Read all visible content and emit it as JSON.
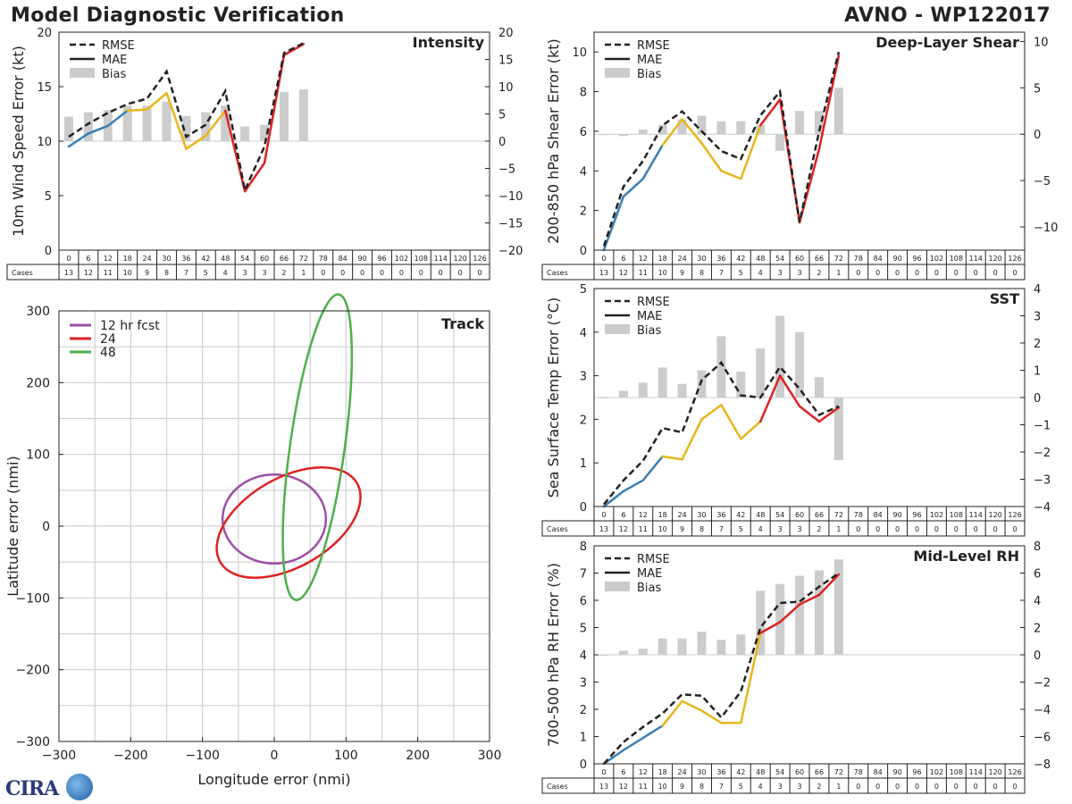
{
  "header": {
    "title": "Model Diagnostic Verification",
    "storm": "AVNO - WP122017"
  },
  "logo": {
    "text": "CIRA"
  },
  "lead_times": [
    0,
    6,
    12,
    18,
    24,
    30,
    36,
    42,
    48,
    54,
    60,
    66,
    72,
    78,
    84,
    90,
    96,
    102,
    108,
    114,
    120,
    126
  ],
  "cases_label": "Cases",
  "cases": [
    13,
    12,
    11,
    10,
    9,
    8,
    7,
    5,
    4,
    3,
    3,
    2,
    1,
    0,
    0,
    0,
    0,
    0,
    0,
    0,
    0,
    0
  ],
  "colors": {
    "rmse": "#222222",
    "mae_blue": "#3a7fb5",
    "mae_yellow": "#e8b51c",
    "mae_red": "#dd2222",
    "bias": "#cccccc",
    "purple": "#9b4fa5",
    "red": "#dd2222",
    "green": "#4daf4a"
  },
  "legend": {
    "rmse": "RMSE",
    "mae": "MAE",
    "bias": "Bias"
  },
  "chart_data": [
    {
      "type": "line",
      "name": "intensity",
      "title": "Intensity",
      "ylabel": "10m Wind Speed Error (kt)",
      "ylim": [
        0,
        20
      ],
      "yticks": [
        0,
        5,
        10,
        15,
        20
      ],
      "y2lim": [
        -20,
        20
      ],
      "y2ticks": [
        -20,
        -15,
        -10,
        -5,
        0,
        5,
        10,
        15,
        20
      ],
      "rmse": [
        10.4,
        11.6,
        12.6,
        13.4,
        13.9,
        16.4,
        10.4,
        11.5,
        14.6,
        5.5,
        9.5,
        18.1,
        19.0
      ],
      "mae": [
        9.5,
        10.7,
        11.4,
        12.8,
        12.9,
        14.4,
        9.3,
        10.5,
        12.8,
        5.4,
        8.0,
        17.9,
        18.9
      ],
      "bias": [
        4.5,
        5.3,
        5.7,
        6.5,
        6.5,
        7.3,
        4.6,
        5.3,
        6.5,
        2.7,
        3.0,
        9.0,
        9.5
      ]
    },
    {
      "type": "line",
      "name": "deep-layer-shear",
      "title": "Deep-Layer Shear",
      "ylabel": "200-850 hPa Shear Error (kt)",
      "ylim": [
        0,
        11
      ],
      "yticks": [
        0,
        2,
        4,
        6,
        8,
        10
      ],
      "y2lim": [
        -12.5,
        11
      ],
      "y2ticks": [
        -10,
        -5,
        0,
        5,
        10
      ],
      "rmse": [
        0.2,
        3.2,
        4.5,
        6.3,
        7.0,
        6.0,
        5.0,
        4.6,
        6.8,
        8.0,
        1.4,
        6.0,
        10.0
      ],
      "mae": [
        0.0,
        2.7,
        3.6,
        5.3,
        6.6,
        5.4,
        4.0,
        3.6,
        6.3,
        7.6,
        1.4,
        5.1,
        9.8
      ],
      "bias": [
        0.0,
        -0.2,
        0.5,
        1.0,
        1.6,
        2.0,
        1.4,
        1.4,
        1.0,
        -1.8,
        2.5,
        2.5,
        5.0
      ]
    },
    {
      "type": "line",
      "name": "sst",
      "title": "SST",
      "ylabel": "Sea Surface Temp Error (°C)",
      "ylim": [
        0,
        5
      ],
      "yticks": [
        0,
        1,
        2,
        3,
        4,
        5
      ],
      "y2lim": [
        -4,
        4
      ],
      "y2ticks": [
        -4,
        -3,
        -2,
        -1,
        0,
        1,
        2,
        3,
        4
      ],
      "rmse": [
        0.05,
        0.6,
        1.05,
        1.8,
        1.7,
        2.9,
        3.3,
        2.55,
        2.5,
        3.2,
        2.7,
        2.1,
        2.3
      ],
      "mae": [
        0.0,
        0.35,
        0.6,
        1.15,
        1.08,
        2.0,
        2.33,
        1.55,
        1.95,
        3.0,
        2.3,
        1.95,
        2.27
      ],
      "bias": [
        0.0,
        0.25,
        0.55,
        1.1,
        0.5,
        1.0,
        2.25,
        0.95,
        1.8,
        3.0,
        2.4,
        0.75,
        -2.3
      ]
    },
    {
      "type": "line",
      "name": "mid-level-rh",
      "title": "Mid-Level RH",
      "ylabel": "700-500 hPa RH Error (%)",
      "ylim": [
        0,
        8
      ],
      "yticks": [
        0,
        1,
        2,
        3,
        4,
        5,
        6,
        7,
        8
      ],
      "y2lim": [
        -8,
        8
      ],
      "y2ticks": [
        -8,
        -6,
        -4,
        -2,
        0,
        2,
        4,
        6,
        8
      ],
      "rmse": [
        0.0,
        0.8,
        1.35,
        1.85,
        2.55,
        2.5,
        1.7,
        2.65,
        5.0,
        5.9,
        5.95,
        6.5,
        7.0
      ],
      "mae": [
        0.0,
        0.5,
        0.95,
        1.4,
        2.3,
        1.95,
        1.5,
        1.5,
        4.8,
        5.2,
        5.85,
        6.2,
        6.95
      ],
      "bias": [
        0.0,
        0.3,
        0.45,
        1.2,
        1.2,
        1.7,
        1.1,
        1.5,
        4.7,
        5.2,
        5.8,
        6.2,
        7.0
      ]
    },
    {
      "type": "scatter",
      "name": "track",
      "title": "Track",
      "xlabel": "Longitude error (nmi)",
      "ylabel": "Latitude error (nmi)",
      "xlim": [
        -300,
        300
      ],
      "ylim": [
        -300,
        300
      ],
      "ticks": [
        -300,
        -200,
        -100,
        0,
        100,
        200,
        300
      ],
      "ellipses": [
        {
          "label": "12 hr fcst",
          "cx": 0,
          "cy": 10,
          "rx": 72,
          "ry": 62,
          "angle": 0
        },
        {
          "label": "24",
          "cx": 20,
          "cy": 5,
          "rx": 110,
          "ry": 62,
          "angle": 30
        },
        {
          "label": "48",
          "cx": 60,
          "cy": 110,
          "rx": 215,
          "ry": 38,
          "angle": 82
        }
      ]
    }
  ]
}
